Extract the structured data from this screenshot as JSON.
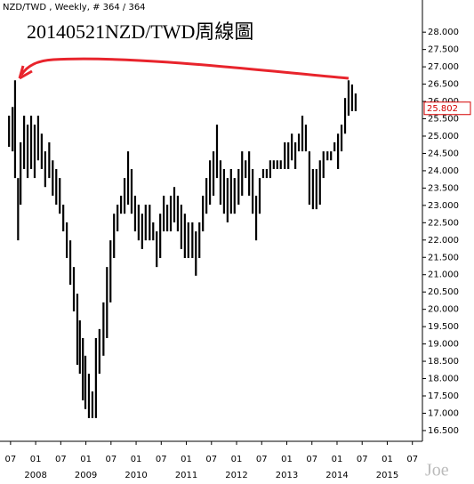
{
  "chart_data": {
    "type": "hilo",
    "header": "NZD/TWD , Weekly, # 364 / 364",
    "title": "20140521NZD/TWD周線圖",
    "watermark": "Joe",
    "color": "#000000",
    "last_value": 25.802,
    "last_value_color": "#d40000",
    "x": [
      2007.47,
      2007.54,
      2007.59,
      2007.65,
      2007.7,
      2007.77,
      2007.84,
      2007.91,
      2007.98,
      2008.05,
      2008.12,
      2008.19,
      2008.27,
      2008.34,
      2008.41,
      2008.48,
      2008.55,
      2008.62,
      2008.69,
      2008.76,
      2008.83,
      2008.88,
      2008.94,
      2008.99,
      2009.06,
      2009.13,
      2009.2,
      2009.27,
      2009.35,
      2009.42,
      2009.49,
      2009.56,
      2009.63,
      2009.7,
      2009.77,
      2009.84,
      2009.91,
      2009.98,
      2010.05,
      2010.12,
      2010.19,
      2010.27,
      2010.34,
      2010.41,
      2010.48,
      2010.55,
      2010.62,
      2010.69,
      2010.76,
      2010.83,
      2010.9,
      2010.97,
      2011.04,
      2011.12,
      2011.19,
      2011.26,
      2011.33,
      2011.4,
      2011.47,
      2011.54,
      2011.61,
      2011.68,
      2011.75,
      2011.82,
      2011.89,
      2011.96,
      2012.04,
      2012.11,
      2012.18,
      2012.25,
      2012.32,
      2012.39,
      2012.46,
      2012.53,
      2012.6,
      2012.67,
      2012.74,
      2012.81,
      2012.88,
      2012.96,
      2013.03,
      2013.1,
      2013.17,
      2013.24,
      2013.31,
      2013.38,
      2013.45,
      2013.52,
      2013.59,
      2013.66,
      2013.73,
      2013.81,
      2013.88,
      2013.95,
      2014.02,
      2014.09,
      2014.16,
      2014.23,
      2014.3,
      2014.37
    ],
    "high": [
      25.59,
      25.84,
      26.61,
      23.79,
      24.82,
      25.59,
      25.33,
      25.59,
      25.33,
      25.59,
      25.07,
      24.56,
      24.82,
      24.3,
      24.05,
      23.79,
      23.02,
      22.51,
      21.99,
      21.22,
      20.45,
      19.68,
      19.17,
      18.66,
      18.14,
      17.63,
      19.17,
      19.43,
      20.2,
      21.22,
      21.99,
      22.76,
      23.02,
      23.28,
      23.79,
      24.56,
      24.05,
      23.28,
      23.02,
      22.76,
      23.02,
      23.02,
      22.51,
      22.25,
      22.76,
      23.28,
      23.02,
      23.28,
      23.53,
      23.28,
      23.02,
      22.76,
      22.51,
      22.51,
      22.25,
      22.51,
      23.28,
      23.79,
      24.3,
      24.56,
      25.33,
      24.3,
      24.05,
      23.79,
      24.05,
      23.79,
      24.05,
      24.56,
      24.3,
      24.56,
      24.05,
      23.28,
      23.79,
      24.05,
      24.05,
      24.3,
      24.3,
      24.3,
      24.3,
      24.82,
      24.82,
      25.07,
      24.82,
      25.07,
      25.59,
      25.33,
      24.56,
      24.05,
      24.05,
      24.3,
      24.56,
      24.56,
      24.56,
      24.82,
      25.07,
      25.33,
      26.1,
      26.61,
      26.49,
      26.23
    ],
    "low": [
      24.69,
      24.56,
      23.79,
      21.99,
      23.02,
      24.05,
      23.79,
      24.05,
      23.79,
      24.3,
      24.05,
      23.53,
      23.79,
      23.28,
      23.02,
      22.76,
      22.25,
      21.48,
      20.71,
      19.94,
      18.4,
      18.14,
      17.37,
      17.12,
      16.86,
      16.86,
      16.86,
      18.14,
      18.66,
      19.17,
      20.2,
      21.48,
      22.25,
      22.76,
      22.76,
      23.02,
      22.76,
      22.25,
      21.99,
      21.74,
      21.99,
      21.99,
      21.99,
      21.22,
      21.48,
      22.25,
      22.25,
      22.25,
      22.51,
      22.25,
      21.74,
      21.48,
      21.48,
      21.48,
      20.97,
      21.48,
      22.25,
      22.76,
      23.02,
      23.28,
      23.79,
      23.02,
      22.76,
      22.51,
      22.76,
      22.76,
      23.02,
      23.28,
      23.79,
      23.28,
      22.76,
      21.99,
      22.76,
      23.79,
      23.79,
      23.79,
      24.05,
      24.05,
      24.05,
      24.05,
      24.05,
      24.3,
      24.05,
      24.56,
      24.56,
      24.56,
      23.02,
      22.89,
      22.89,
      23.02,
      23.79,
      24.3,
      24.3,
      24.56,
      24.05,
      24.56,
      25.07,
      25.59,
      25.72,
      25.72
    ],
    "xlim": [
      2007.29,
      2015.7
    ],
    "ylim": [
      16.19,
      28.21
    ],
    "xticks": [
      {
        "value": 2007.5,
        "label": "07"
      },
      {
        "value": 2008.0,
        "label": "01"
      },
      {
        "value": 2008.5,
        "label": "07"
      },
      {
        "value": 2009.0,
        "label": "01"
      },
      {
        "value": 2009.5,
        "label": "07"
      },
      {
        "value": 2010.0,
        "label": "01"
      },
      {
        "value": 2010.5,
        "label": "07"
      },
      {
        "value": 2011.0,
        "label": "01"
      },
      {
        "value": 2011.5,
        "label": "07"
      },
      {
        "value": 2012.0,
        "label": "01"
      },
      {
        "value": 2012.5,
        "label": "07"
      },
      {
        "value": 2013.0,
        "label": "01"
      },
      {
        "value": 2013.5,
        "label": "07"
      },
      {
        "value": 2014.0,
        "label": "01"
      },
      {
        "value": 2014.5,
        "label": "07"
      },
      {
        "value": 2015.0,
        "label": "01"
      },
      {
        "value": 2015.5,
        "label": "07"
      }
    ],
    "xyears": [
      2008,
      2009,
      2010,
      2011,
      2012,
      2013,
      2014,
      2015
    ],
    "yticks": [
      {
        "value": 16.5,
        "label": "16.500"
      },
      {
        "value": 17,
        "label": "17.000"
      },
      {
        "value": 17.5,
        "label": "17.500"
      },
      {
        "value": 18,
        "label": "18.000"
      },
      {
        "value": 18.5,
        "label": "18.500"
      },
      {
        "value": 19,
        "label": "19.000"
      },
      {
        "value": 19.5,
        "label": "19.500"
      },
      {
        "value": 20,
        "label": "20.000"
      },
      {
        "value": 20.5,
        "label": "20.500"
      },
      {
        "value": 21,
        "label": "21.000"
      },
      {
        "value": 21.5,
        "label": "21.500"
      },
      {
        "value": 22,
        "label": "22.000"
      },
      {
        "value": 22.5,
        "label": "22.500"
      },
      {
        "value": 23,
        "label": "23.000"
      },
      {
        "value": 23.5,
        "label": "23.500"
      },
      {
        "value": 24,
        "label": "24.000"
      },
      {
        "value": 24.5,
        "label": "24.500"
      },
      {
        "value": 25,
        "label": "25.000"
      },
      {
        "value": 25.5,
        "label": "25.500"
      },
      {
        "value": 26,
        "label": "26.000"
      },
      {
        "value": 26.5,
        "label": "26.500"
      },
      {
        "value": 27,
        "label": "27.000"
      },
      {
        "value": 27.5,
        "label": "27.500"
      },
      {
        "value": 28,
        "label": "28.000"
      }
    ]
  }
}
